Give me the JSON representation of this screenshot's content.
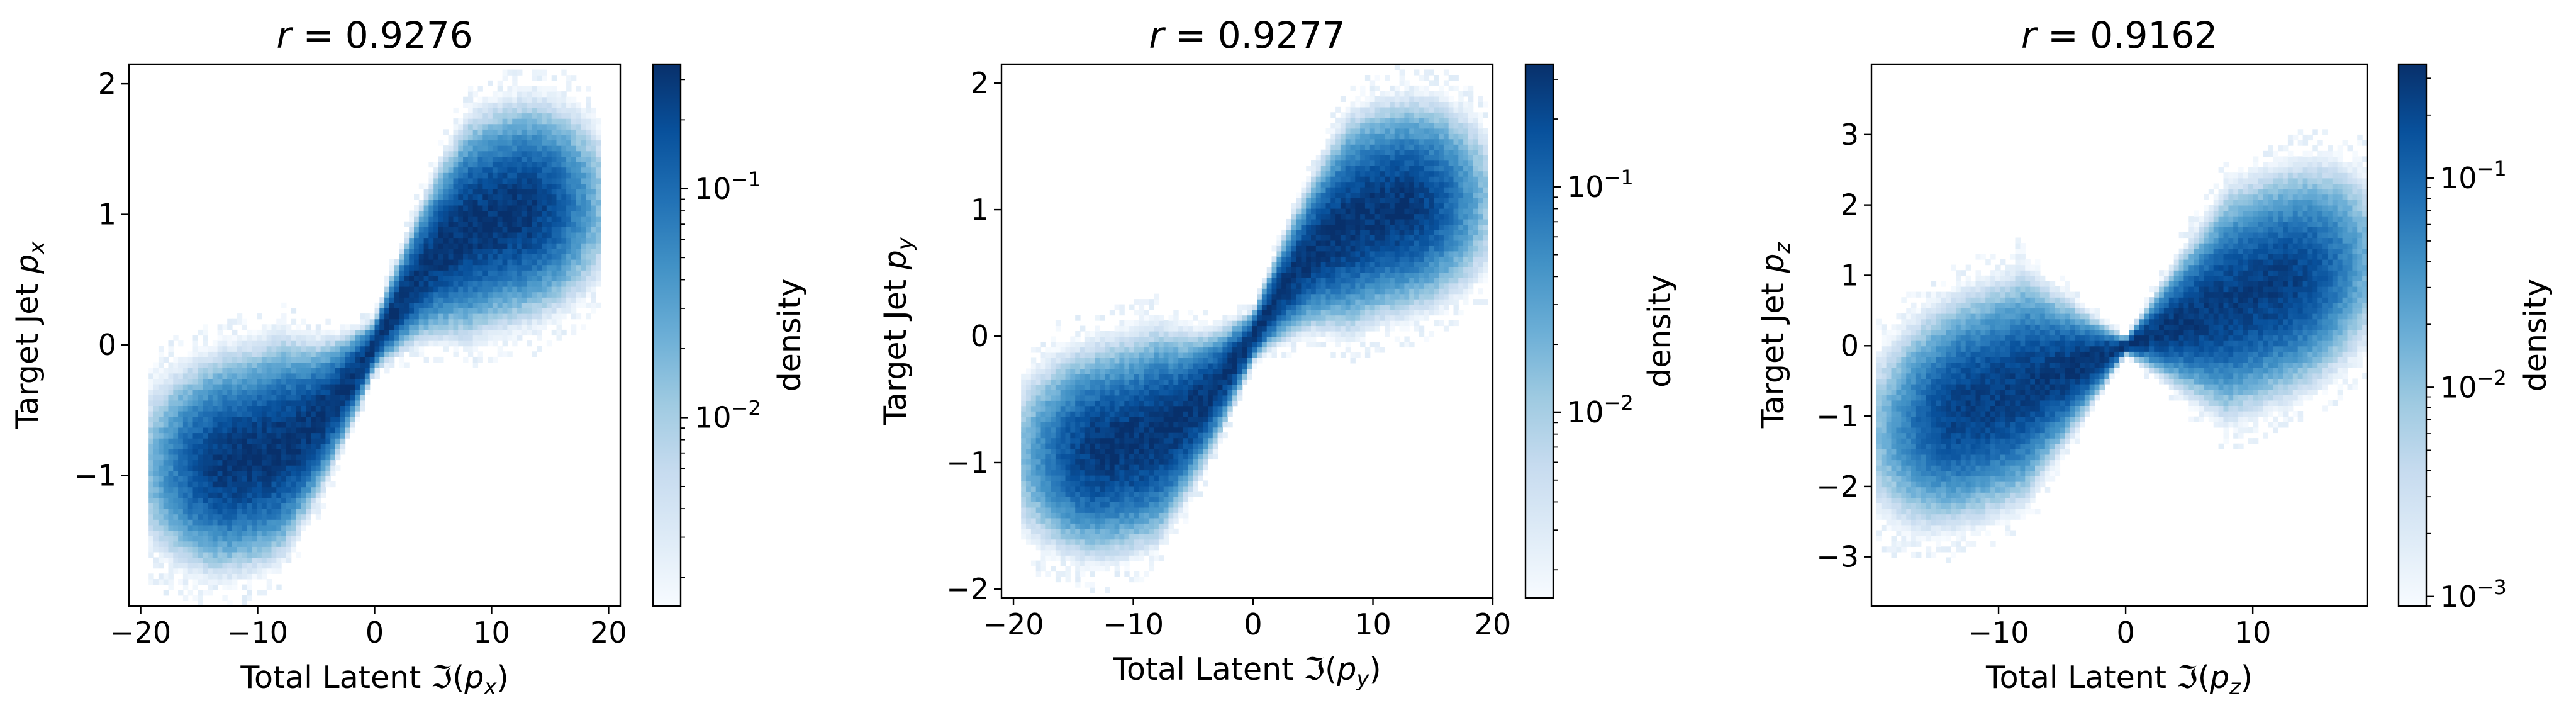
{
  "chart_data": [
    {
      "type": "heatmap",
      "title_var": "r",
      "title_eq": " = ",
      "title_value": "0.9276",
      "xlabel_prefix": "Total Latent ℑ(",
      "xlabel_var": "p",
      "xlabel_sub": "x",
      "xlabel_suffix": ")",
      "ylabel_prefix": "Target Jet ",
      "ylabel_var": "p",
      "ylabel_sub": "x",
      "xlim": [
        -21,
        21
      ],
      "ylim": [
        -2.0,
        2.15
      ],
      "xticks": [
        -20,
        -10,
        0,
        10,
        20
      ],
      "xtick_labels": [
        "−20",
        "−10",
        "0",
        "10",
        "20"
      ],
      "yticks": [
        -1,
        0,
        1,
        2
      ],
      "ytick_labels": [
        "−1",
        "0",
        "1",
        "2"
      ],
      "slope": 0.7,
      "curve": {
        "sign": 1,
        "scale": 7,
        "low_amp": 0.95,
        "high_amp": 1.08
      },
      "spread": {
        "min": 0.07,
        "growth": 0.22
      },
      "colorbar": {
        "label": "density",
        "scale": "log",
        "range": [
          0.0015,
          0.35
        ],
        "major_ticks": [
          0.01,
          0.1
        ],
        "major_labels": [
          {
            "base": "10",
            "exp": "−2"
          },
          {
            "base": "10",
            "exp": "−1"
          }
        ]
      }
    },
    {
      "type": "heatmap",
      "title_var": "r",
      "title_eq": " = ",
      "title_value": "0.9277",
      "xlabel_prefix": "Total Latent ℑ(",
      "xlabel_var": "p",
      "xlabel_sub": "y",
      "xlabel_suffix": ")",
      "ylabel_prefix": "Target Jet ",
      "ylabel_var": "p",
      "ylabel_sub": "y",
      "xlim": [
        -21,
        20
      ],
      "ylim": [
        -2.07,
        2.15
      ],
      "xticks": [
        -20,
        -10,
        0,
        10,
        20
      ],
      "xtick_labels": [
        "−20",
        "−10",
        "0",
        "10",
        "20"
      ],
      "yticks": [
        -2,
        -1,
        0,
        1,
        2
      ],
      "ytick_labels": [
        "−2",
        "−1",
        "0",
        "1",
        "2"
      ],
      "slope": 0.7,
      "curve": {
        "sign": 1,
        "scale": 7,
        "low_amp": 0.95,
        "high_amp": 1.08
      },
      "spread": {
        "min": 0.07,
        "growth": 0.22
      },
      "colorbar": {
        "label": "density",
        "scale": "log",
        "range": [
          0.0015,
          0.35
        ],
        "major_ticks": [
          0.01,
          0.1
        ],
        "major_labels": [
          {
            "base": "10",
            "exp": "−2"
          },
          {
            "base": "10",
            "exp": "−1"
          }
        ]
      }
    },
    {
      "type": "heatmap",
      "title_var": "r",
      "title_eq": " = ",
      "title_value": "0.9162",
      "xlabel_prefix": "Total Latent ℑ(",
      "xlabel_var": "p",
      "xlabel_sub": "z",
      "xlabel_suffix": ")",
      "ylabel_prefix": "Target Jet ",
      "ylabel_var": "p",
      "ylabel_sub": "z",
      "xlim": [
        -20,
        19
      ],
      "ylim": [
        -3.7,
        4.0
      ],
      "xticks": [
        -10,
        0,
        10
      ],
      "xtick_labels": [
        "−10",
        "0",
        "10"
      ],
      "yticks": [
        -3,
        -2,
        -1,
        0,
        1,
        2,
        3
      ],
      "ytick_labels": [
        "−3",
        "−2",
        "−1",
        "0",
        "1",
        "2",
        "3"
      ],
      "slope": 0.1,
      "curve": {
        "sign": 1,
        "scale": 25,
        "low_amp": 1.9,
        "high_amp": 1.9
      },
      "spread": {
        "min": 0.04,
        "growth": 0.5
      },
      "colorbar": {
        "label": "density",
        "scale": "log",
        "range": [
          0.0009,
          0.35
        ],
        "major_ticks": [
          0.001,
          0.01,
          0.1
        ],
        "major_labels": [
          {
            "base": "10",
            "exp": "−3"
          },
          {
            "base": "10",
            "exp": "−2"
          },
          {
            "base": "10",
            "exp": "−1"
          }
        ]
      }
    }
  ],
  "colors": {
    "cmap": [
      "#f7fbff",
      "#deebf7",
      "#c6dbef",
      "#9ecae1",
      "#6baed6",
      "#4292c6",
      "#2171b5",
      "#08519c",
      "#08306b"
    ],
    "axis": "#000000"
  }
}
